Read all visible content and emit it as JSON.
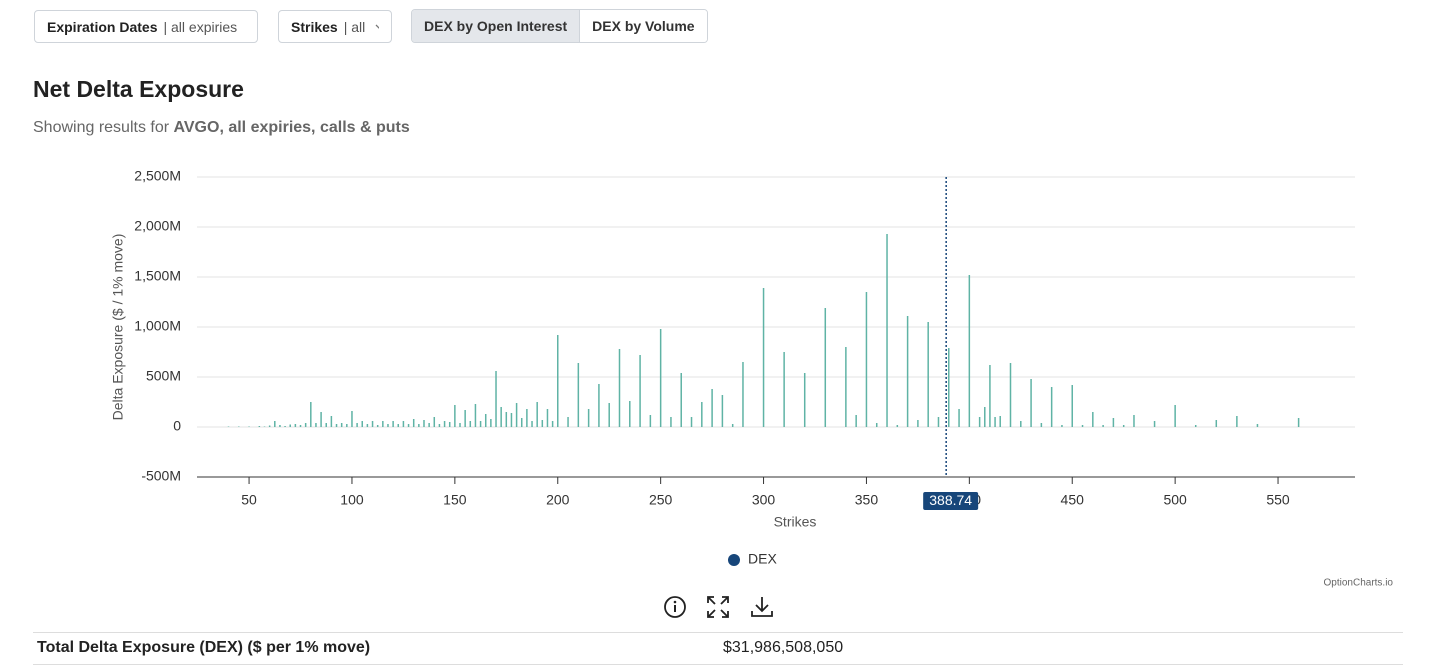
{
  "controls": {
    "expiration": {
      "label": "Expiration Dates",
      "value": "| all expiries"
    },
    "strikes": {
      "label": "Strikes",
      "value": "| all"
    },
    "mode": {
      "options": [
        "DEX by Open Interest",
        "DEX by Volume"
      ],
      "active": 0
    }
  },
  "chart_data": {
    "type": "bar",
    "title": "Net Delta Exposure",
    "subtitle_prefix": "Showing results for",
    "subtitle_highlight": "AVGO, all expiries, calls & puts",
    "x_label": "Strikes",
    "y_label": "Delta Exposure ($ / 1% move)",
    "xlim": [
      24.7,
      587.4
    ],
    "xticks": [
      50,
      100,
      150,
      200,
      250,
      300,
      350,
      400,
      450,
      500,
      550
    ],
    "ylim": [
      -500,
      2500
    ],
    "yticks": [
      {
        "value": -500,
        "label": "-500M"
      },
      0,
      {
        "value": 500,
        "label": "500M"
      },
      {
        "value": 1000,
        "label": "1,000M"
      },
      {
        "value": 1500,
        "label": "1,500M"
      },
      {
        "value": 2000,
        "label": "2,000M"
      },
      {
        "value": 2500,
        "label": "2,500M"
      }
    ],
    "grid": true,
    "crosshair": 388.74,
    "watermark": "OptionCharts.io",
    "series": [
      {
        "name": "DEX",
        "color": "#5fb3a5",
        "legend_color": "#17467a",
        "x": [
          40,
          45,
          50,
          55,
          57.5,
          60,
          62.5,
          65,
          67.5,
          70,
          72.5,
          75,
          77.5,
          80,
          82.5,
          85,
          87.5,
          90,
          92.5,
          95,
          97.5,
          100,
          102.5,
          105,
          107.5,
          110,
          112.5,
          115,
          117.5,
          120,
          122.5,
          125,
          127.5,
          130,
          132.5,
          135,
          137.5,
          140,
          142.5,
          145,
          147.5,
          150,
          152.5,
          155,
          157.5,
          160,
          162.5,
          165,
          167.5,
          170,
          172.5,
          175,
          177.5,
          180,
          182.5,
          185,
          187.5,
          190,
          192.5,
          195,
          197.5,
          200,
          205,
          210,
          215,
          220,
          225,
          230,
          235,
          240,
          245,
          250,
          255,
          260,
          265,
          270,
          275,
          280,
          285,
          290,
          300,
          310,
          320,
          330,
          340,
          345,
          350,
          355,
          360,
          365,
          370,
          375,
          380,
          385,
          390,
          395,
          400,
          405,
          407.5,
          410,
          412.5,
          415,
          420,
          425,
          430,
          435,
          440,
          445,
          450,
          455,
          460,
          465,
          470,
          475,
          480,
          490,
          500,
          510,
          520,
          530,
          540,
          560
        ],
        "values": [
          5,
          5,
          5,
          10,
          5,
          15,
          60,
          20,
          10,
          25,
          30,
          20,
          40,
          250,
          40,
          150,
          40,
          110,
          30,
          40,
          30,
          160,
          40,
          60,
          30,
          60,
          20,
          60,
          30,
          60,
          30,
          60,
          30,
          80,
          30,
          70,
          40,
          100,
          30,
          60,
          50,
          220,
          40,
          170,
          60,
          230,
          60,
          130,
          80,
          560,
          200,
          150,
          140,
          240,
          90,
          180,
          60,
          250,
          70,
          180,
          60,
          920,
          100,
          640,
          180,
          430,
          240,
          780,
          260,
          720,
          120,
          980,
          100,
          540,
          100,
          250,
          380,
          320,
          30,
          650,
          1390,
          750,
          540,
          1190,
          800,
          120,
          1350,
          40,
          1930,
          20,
          1110,
          70,
          1050,
          100,
          790,
          180,
          1520,
          100,
          200,
          620,
          100,
          110,
          640,
          60,
          480,
          40,
          400,
          20,
          420,
          20,
          150,
          20,
          90,
          20,
          120,
          60,
          220,
          20,
          70,
          110,
          30,
          90
        ]
      }
    ]
  },
  "summary": {
    "label": "Total Delta Exposure (DEX) ($ per 1% move)",
    "value": "$31,986,508,050"
  }
}
